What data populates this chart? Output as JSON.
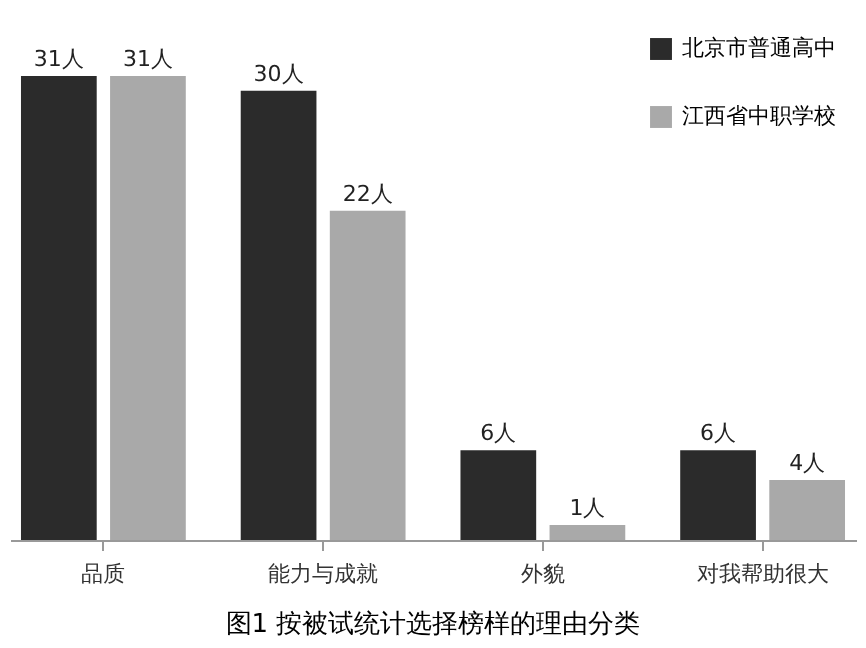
{
  "chart_data": {
    "type": "bar",
    "title": "图1  按被试统计选择榜样的理由分类",
    "categories": [
      "品质",
      "能力与成就",
      "外貌",
      "对我帮助很大"
    ],
    "series": [
      {
        "name": "北京市普通高中",
        "color": "#2b2b2b",
        "values": [
          31,
          30,
          6,
          6
        ],
        "value_labels": [
          "31人",
          "30人",
          "6人",
          "6人"
        ]
      },
      {
        "name": "江西省中职学校",
        "color": "#a9a9a9",
        "values": [
          31,
          22,
          1,
          4
        ],
        "value_labels": [
          "31人",
          "22人",
          "1人",
          "4人"
        ]
      }
    ],
    "legend": "top right",
    "tick_labels": "x"
  }
}
